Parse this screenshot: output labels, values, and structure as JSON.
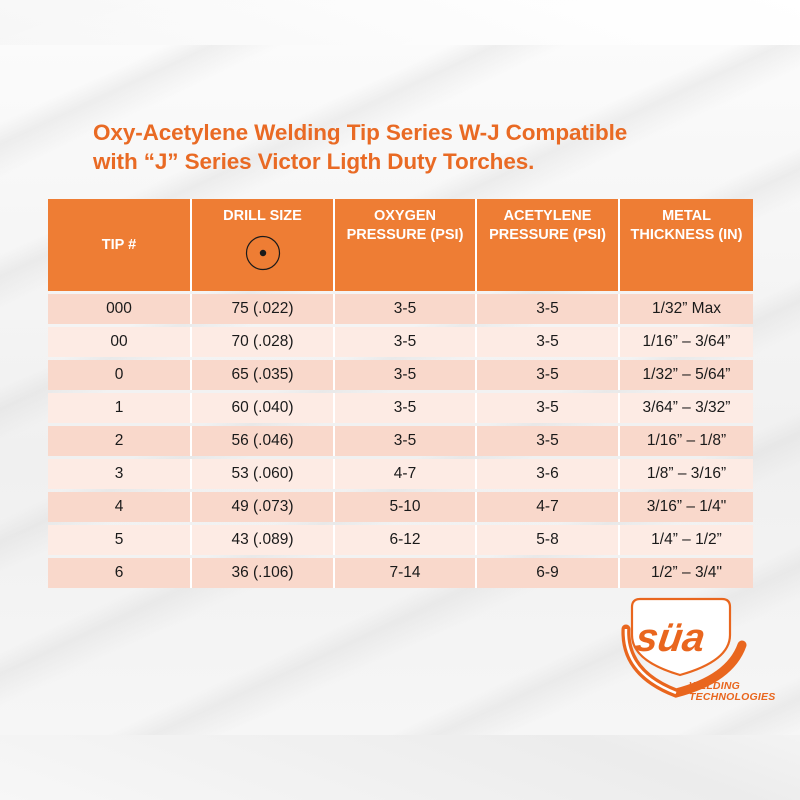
{
  "title": {
    "line1": "Oxy-Acetylene Welding Tip Series W-J Compatible",
    "line2": "with “J” Series Victor Ligth Duty Torches."
  },
  "table": {
    "headers": {
      "tip": "TIP #",
      "drill": "DRILL SIZE",
      "oxygen_l1": "OXYGEN",
      "oxygen_l2": "PRESSURE (PSI)",
      "acetylene_l1": "ACETYLENE",
      "acetylene_l2": "PRESSURE (PSI)",
      "metal_l1": "METAL",
      "metal_l2": "THICKNESS (IN)"
    },
    "drill_icon": "drill-hole-icon",
    "rows": [
      [
        "000",
        "75 (.022)",
        "3-5",
        "3-5",
        "1/32” Max"
      ],
      [
        "00",
        "70 (.028)",
        "3-5",
        "3-5",
        "1/16” – 3/64”"
      ],
      [
        "0",
        "65 (.035)",
        "3-5",
        "3-5",
        "1/32” – 5/64”"
      ],
      [
        "1",
        "60 (.040)",
        "3-5",
        "3-5",
        "3/64” – 3/32”"
      ],
      [
        "2",
        "56 (.046)",
        "3-5",
        "3-5",
        "1/16” – 1/8”"
      ],
      [
        "3",
        "53 (.060)",
        "4-7",
        "3-6",
        "1/8” – 3/16”"
      ],
      [
        "4",
        "49 (.073)",
        "5-10",
        "4-7",
        "3/16” – 1/4\""
      ],
      [
        "5",
        "43 (.089)",
        "6-12",
        "5-8",
        "1/4” – 1/2”"
      ],
      [
        "6",
        "36 (.106)",
        "7-14",
        "6-9",
        "1/2” – 3/4\""
      ]
    ]
  },
  "logo": {
    "mark": "süa",
    "line1": "WELDING",
    "line2": "TECHNOLOGIES"
  },
  "colors": {
    "accent": "#ee7d34",
    "title": "#e96a24",
    "row_odd": "#f9d8cb",
    "row_even": "#fdebe4"
  }
}
